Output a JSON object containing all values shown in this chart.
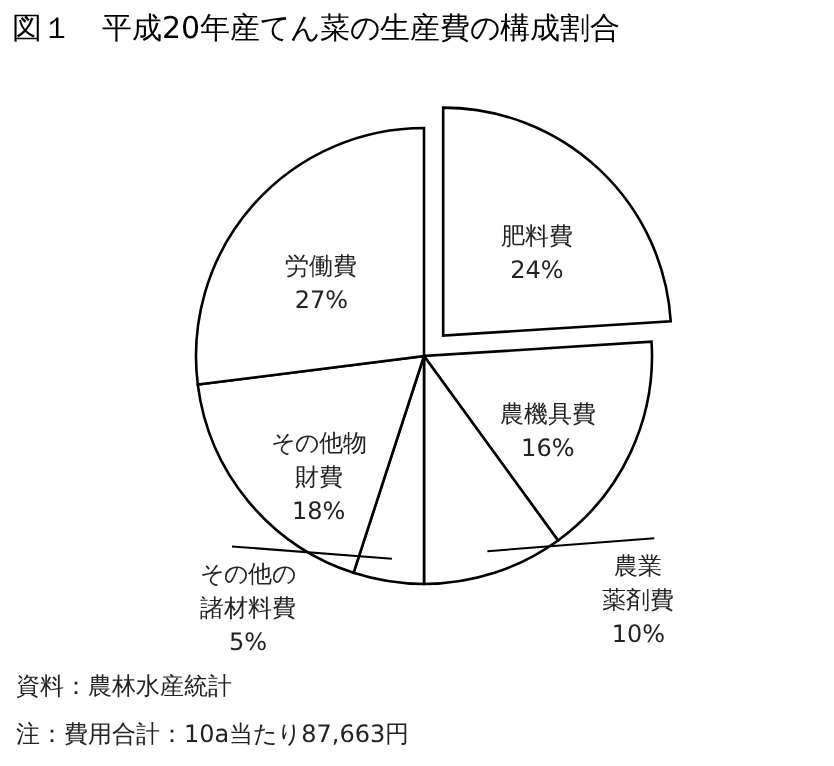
{
  "chart_data": {
    "type": "pie",
    "title": "図１　平成20年産てん菜の生産費の構成割合",
    "categories": [
      "肥料費",
      "農機具費",
      "農業薬剤費",
      "その他の諸材料費",
      "その他物財費",
      "労働費"
    ],
    "values": [
      24,
      16,
      10,
      5,
      18,
      27
    ],
    "value_labels": [
      "24%",
      "16%",
      "10%",
      "5%",
      "18%",
      "27%"
    ],
    "colors": [
      "#ffffff",
      "#ffffff",
      "#ffffff",
      "#ffffff",
      "#ffffff",
      "#ffffff"
    ],
    "annotations": [
      "資料：農林水産統計",
      "注：費用合計：10a当たり87,663円"
    ]
  }
}
